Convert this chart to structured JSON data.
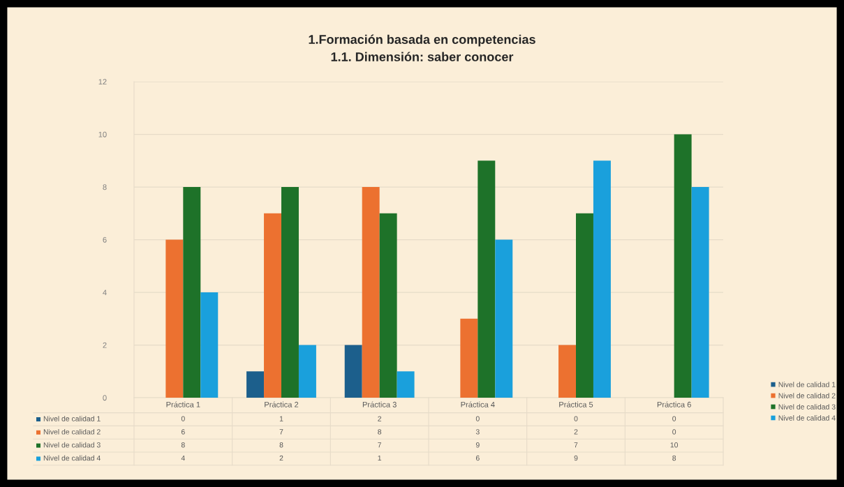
{
  "chart_data": {
    "type": "bar",
    "title": "1.Formación basada en competencias",
    "subtitle": "1.1. Dimensión: saber conocer",
    "categories": [
      "Práctica 1",
      "Práctica 2",
      "Práctica 3",
      "Práctica 4",
      "Práctica 5",
      "Práctica 6"
    ],
    "series": [
      {
        "name": "Nivel de calidad 1",
        "color": "#1c5f8c",
        "values": [
          0,
          1,
          2,
          0,
          0,
          0
        ]
      },
      {
        "name": "Nivel de calidad 2",
        "color": "#ec7130",
        "values": [
          6,
          7,
          8,
          3,
          2,
          0
        ]
      },
      {
        "name": "Nivel de calidad 3",
        "color": "#1e7229",
        "values": [
          8,
          8,
          7,
          9,
          7,
          10
        ]
      },
      {
        "name": "Nivel de calidad 4",
        "color": "#1aa0dc",
        "values": [
          4,
          2,
          1,
          6,
          9,
          8
        ]
      }
    ],
    "ylim": [
      0,
      12
    ],
    "yticks": [
      0,
      2,
      4,
      6,
      8,
      10,
      12
    ],
    "grid": "y",
    "legend": "right",
    "data_labels": true
  }
}
